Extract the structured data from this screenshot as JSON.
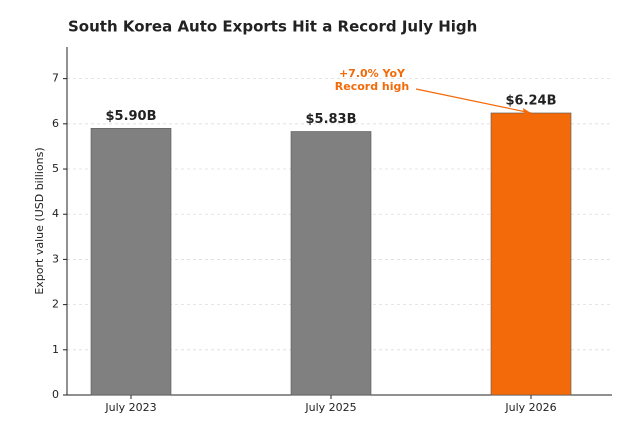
{
  "chart_data": {
    "type": "bar",
    "title": "South Korea Auto Exports Hit a Record July High",
    "y_label": "Export value (USD billions)",
    "categories": [
      "July 2023",
      "July 2025",
      "July 2026"
    ],
    "values": [
      5.9,
      5.83,
      6.24
    ],
    "value_labels": [
      "$5.90B",
      "$5.83B",
      "$6.24B"
    ],
    "colors": [
      "#808080",
      "#808080",
      "#f26a0a"
    ],
    "ylim": [
      0,
      7.7
    ],
    "yticks": [
      0,
      1,
      2,
      3,
      4,
      5,
      6,
      7
    ],
    "grid": true,
    "annotation": {
      "lines": [
        "+7.0% YoY",
        "Record high"
      ],
      "color": "#f26a0a",
      "target": 2
    }
  }
}
